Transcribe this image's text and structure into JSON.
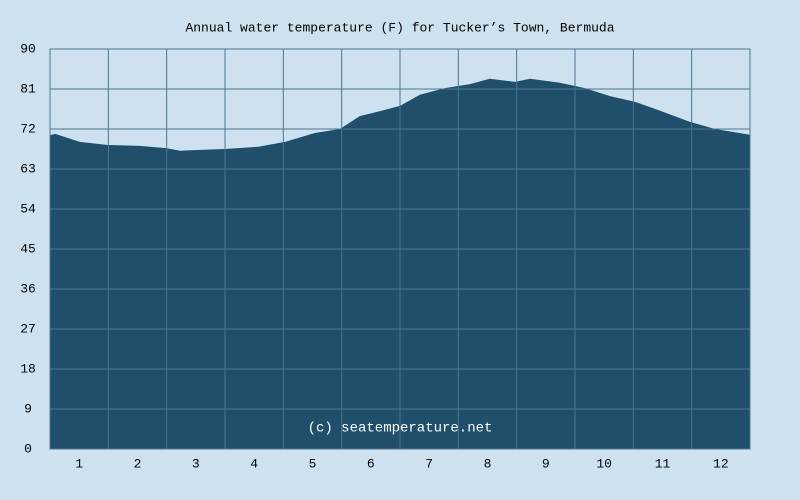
{
  "chart_data": {
    "type": "area",
    "title": "Annual water temperature (F) for Tucker’s Town, Bermuda",
    "annotation": "(c) seatemperature.net",
    "x": [
      0.5,
      0.59,
      1.01,
      1.49,
      2.04,
      2.49,
      2.73,
      3.07,
      3.5,
      4.07,
      4.53,
      5.04,
      5.47,
      5.81,
      6.24,
      6.5,
      6.84,
      7.27,
      7.7,
      8.04,
      8.47,
      8.73,
      9.24,
      9.67,
      10.1,
      10.53,
      10.96,
      11.47,
      11.9,
      12.5
    ],
    "values": [
      70.6,
      70.9,
      69.1,
      68.4,
      68.2,
      67.7,
      67.1,
      67.3,
      67.5,
      68.0,
      69.1,
      71.1,
      72.0,
      74.9,
      76.3,
      77.2,
      79.7,
      81.2,
      82.1,
      83.3,
      82.6,
      83.3,
      82.4,
      81.2,
      79.4,
      78.1,
      76.1,
      73.6,
      72.0,
      70.7
    ],
    "color": "#1f4f6b",
    "xlim": [
      0.5,
      12.5
    ],
    "xticks": [
      1,
      2,
      3,
      4,
      5,
      6,
      7,
      8,
      9,
      10,
      11,
      12
    ],
    "ylim": [
      0,
      90
    ],
    "yticks": [
      0,
      9,
      18,
      27,
      36,
      45,
      54,
      63,
      72,
      81,
      90
    ],
    "grid": true
  }
}
